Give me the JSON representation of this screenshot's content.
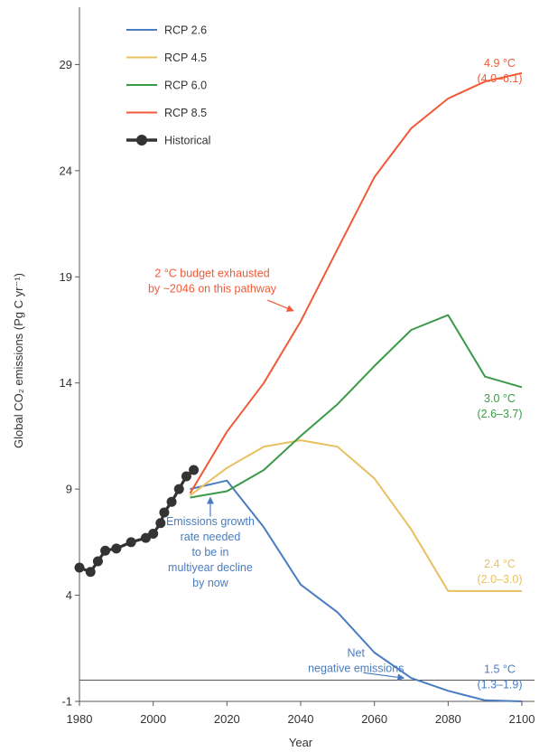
{
  "chart_data": {
    "type": "line",
    "xlabel": "Year",
    "ylabel": "Global CO₂ emissions (Pg C yr⁻¹)",
    "xlim": [
      1980,
      2100
    ],
    "ylim": [
      -1,
      30
    ],
    "x_ticks": [
      1980,
      2000,
      2020,
      2040,
      2060,
      2080,
      2100
    ],
    "y_ticks": [
      -1,
      4,
      9,
      14,
      19,
      24,
      29
    ],
    "zero_line": 0,
    "legend_position": "top-left",
    "grid": false,
    "series": [
      {
        "name": "RCP 2.6",
        "color": "#4a7cc1",
        "style": "line",
        "x": [
          2010,
          2020,
          2030,
          2040,
          2050,
          2060,
          2070,
          2080,
          2090,
          2100
        ],
        "y": [
          9.0,
          9.4,
          7.2,
          4.5,
          3.2,
          1.3,
          0.1,
          -0.5,
          -0.95,
          -1.0
        ]
      },
      {
        "name": "RCP 4.5",
        "color": "#e8c060",
        "style": "line",
        "x": [
          2010,
          2020,
          2030,
          2040,
          2050,
          2060,
          2070,
          2080,
          2090,
          2100
        ],
        "y": [
          8.7,
          10.0,
          11.0,
          11.3,
          11.0,
          9.5,
          7.1,
          4.2,
          4.2,
          4.2
        ]
      },
      {
        "name": "RCP 6.0",
        "color": "#3a9a48",
        "style": "line",
        "x": [
          2010,
          2020,
          2030,
          2040,
          2050,
          2060,
          2070,
          2080,
          2090,
          2100
        ],
        "y": [
          8.6,
          8.9,
          9.9,
          11.5,
          13.0,
          14.8,
          16.5,
          17.2,
          14.3,
          13.8
        ]
      },
      {
        "name": "RCP 8.5",
        "color": "#f05a38",
        "style": "line",
        "x": [
          2010,
          2020,
          2030,
          2040,
          2050,
          2060,
          2070,
          2080,
          2090,
          2100
        ],
        "y": [
          8.8,
          11.7,
          14.0,
          16.9,
          20.3,
          23.7,
          26.0,
          27.4,
          28.2,
          28.6
        ]
      },
      {
        "name": "Historical",
        "color": "#333333",
        "style": "line-markers",
        "x": [
          1980,
          1983,
          1985,
          1987,
          1990,
          1994,
          1998,
          2000,
          2002,
          2003,
          2005,
          2007,
          2009,
          2011
        ],
        "y": [
          5.3,
          5.1,
          5.6,
          6.1,
          6.2,
          6.5,
          6.7,
          6.9,
          7.4,
          7.9,
          8.4,
          9.0,
          9.6,
          9.9
        ]
      }
    ],
    "annotations": [
      {
        "text": "2 °C budget exhausted\nby ~2046 on this pathway",
        "color": "#f05a38",
        "data_x": 2016,
        "data_y": 19.0,
        "anchor": "middle",
        "arrow_from": [
          2031,
          17.9
        ],
        "arrow_to": [
          2038,
          17.4
        ]
      },
      {
        "text": "Emissions growth\nrate needed\nto be in\nmultiyear decline\nby now",
        "color": "#4a7cc1",
        "data_x": 2015.5,
        "data_y": 7.3,
        "anchor": "middle",
        "arrow_from": [
          2015.5,
          7.7
        ],
        "arrow_to": [
          2015.5,
          8.6
        ]
      },
      {
        "text": "Net\nnegative emissions",
        "color": "#4a7cc1",
        "data_x": 2055,
        "data_y": 1.1,
        "anchor": "middle",
        "arrow_from": [
          2057,
          0.35
        ],
        "arrow_to": [
          2068,
          0.1
        ]
      },
      {
        "text": "4.9 °C\n(4.0–6.1)",
        "color": "#f05a38",
        "data_x": 2094,
        "data_y": 28.9,
        "anchor": "middle"
      },
      {
        "text": "3.0 °C\n(2.6–3.7)",
        "color": "#3a9a48",
        "data_x": 2094,
        "data_y": 13.1,
        "anchor": "middle"
      },
      {
        "text": "2.4 °C\n(2.0–3.0)",
        "color": "#e8c060",
        "data_x": 2094,
        "data_y": 5.3,
        "anchor": "middle"
      },
      {
        "text": "1.5 °C\n(1.3–1.9)",
        "color": "#4a7cc1",
        "data_x": 2094,
        "data_y": 0.35,
        "anchor": "middle"
      }
    ]
  }
}
